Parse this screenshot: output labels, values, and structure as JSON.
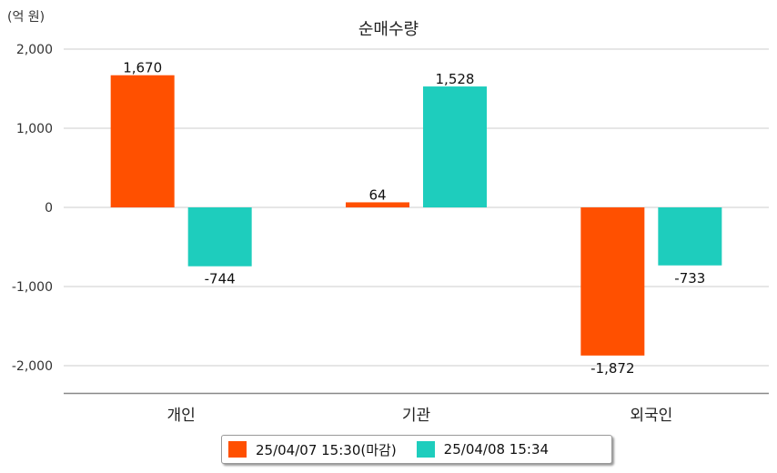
{
  "chart_data": {
    "type": "bar",
    "title": "순매수량",
    "unit_label": "(억 원)",
    "categories": [
      "개인",
      "기관",
      "외국인"
    ],
    "series": [
      {
        "name": "25/04/07 15:30(마감)",
        "color": "#ff5000",
        "values": [
          1670,
          64,
          -1872
        ]
      },
      {
        "name": "25/04/08 15:34",
        "color": "#1ecdbd",
        "values": [
          -744,
          1528,
          -733
        ]
      }
    ],
    "data_labels": [
      [
        "1,670",
        "64",
        "-1,872"
      ],
      [
        "-744",
        "1,528",
        "-733"
      ]
    ],
    "yticks": [
      2000,
      1000,
      0,
      -1000,
      -2000
    ],
    "ytick_labels": [
      "2,000",
      "1,000",
      "0",
      "-1,000",
      "-2,000"
    ],
    "ylim": [
      -2350,
      2000
    ],
    "grid": true,
    "legend_position": "bottom"
  }
}
